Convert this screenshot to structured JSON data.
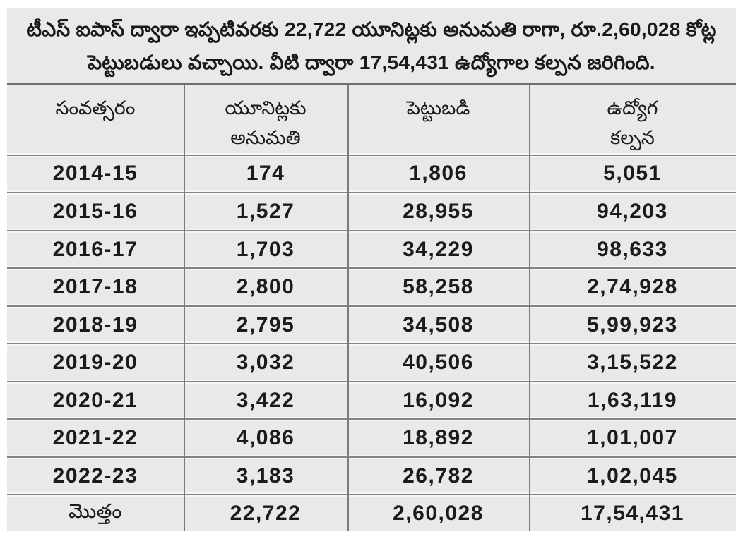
{
  "palette": {
    "page_background": "#ffffff",
    "panel_background": "#e9e9e9",
    "rule_dark": "#7c7c7c",
    "rule_light": "#f6f6f6",
    "text_color": "#1a1a1a"
  },
  "intro": {
    "text": "టీఎస్ ఐపాస్ ద్వారా ఇప్పటివరకు 22,722 యూనిట్లకు అనుమతి రాగా, రూ.2,60,028 కోట్ల పెట్టుబడులు వచ్చాయి. వీటి ద్వారా 17,54,431 ఉద్యోగాల కల్పన జరిగింది."
  },
  "table": {
    "columns": [
      {
        "key": "year",
        "lines": [
          "సంవత్సరం",
          ""
        ]
      },
      {
        "key": "units_permitted",
        "lines": [
          "యూనిట్లకు",
          "అనుమతి"
        ]
      },
      {
        "key": "investment",
        "lines": [
          "పెట్టుబడి",
          ""
        ]
      },
      {
        "key": "employment",
        "lines": [
          "ఉద్యోగ",
          "కల్పన"
        ]
      }
    ],
    "rows": [
      {
        "year": "2014-15",
        "units": "174",
        "investment": "1,806",
        "employment": "5,051"
      },
      {
        "year": "2015-16",
        "units": "1,527",
        "investment": "28,955",
        "employment": "94,203"
      },
      {
        "year": "2016-17",
        "units": "1,703",
        "investment": "34,229",
        "employment": "98,633"
      },
      {
        "year": "2017-18",
        "units": "2,800",
        "investment": "58,258",
        "employment": "2,74,928"
      },
      {
        "year": "2018-19",
        "units": "2,795",
        "investment": "34,508",
        "employment": "5,99,923"
      },
      {
        "year": "2019-20",
        "units": "3,032",
        "investment": "40,506",
        "employment": "3,15,522"
      },
      {
        "year": "2020-21",
        "units": "3,422",
        "investment": "16,092",
        "employment": "1,63,119"
      },
      {
        "year": "2021-22",
        "units": "4,086",
        "investment": "18,892",
        "employment": "1,01,007"
      },
      {
        "year": "2022-23",
        "units": "3,183",
        "investment": "26,782",
        "employment": "1,02,045"
      }
    ],
    "total": {
      "label": "మొత్తం",
      "units": "22,722",
      "investment": "2,60,028",
      "employment": "17,54,431"
    }
  }
}
